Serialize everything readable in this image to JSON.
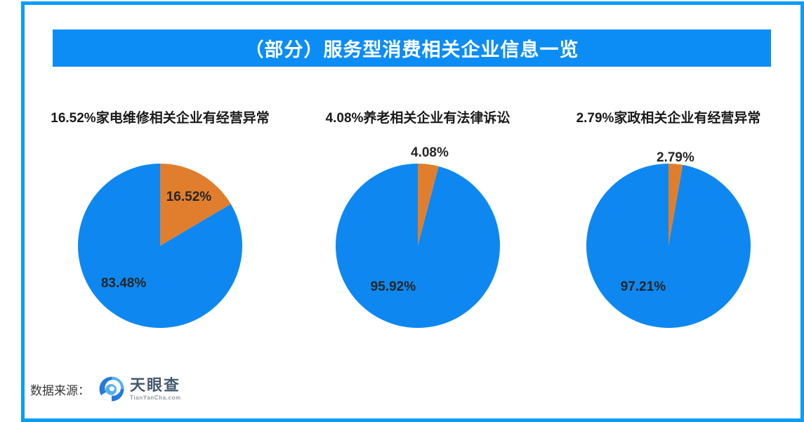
{
  "header": {
    "title": "（部分）服务型消费相关企业信息一览"
  },
  "colors": {
    "frame-blue": "#089cfb",
    "banner-blue": "#0c8df5",
    "pie-blue": "#0e88f0",
    "pie-orange": "#e07e2e",
    "banner-text": "#ffffff",
    "chart-title": "#1a1a1a",
    "pie-label": "#262626",
    "source-text": "#383838",
    "logo-name": "#455a6e",
    "logo-domain": "#8f9aa4",
    "swirl-dark": "#2878dd",
    "swirl-light": "#54b0ee"
  },
  "chart_data": [
    {
      "type": "pie",
      "title": "16.52%家电维修相关企业有经营异常",
      "start_angle": "top",
      "direction": "clockwise",
      "legend": false,
      "slices": [
        {
          "label": "16.52%",
          "value": 16.52,
          "color": "pie-orange",
          "label_placement": "inside",
          "label_offset": [
            0.35,
            -0.594
          ]
        },
        {
          "label": "83.48%",
          "value": 83.48,
          "color": "pie-blue",
          "label_placement": "inside",
          "label_offset": [
            -0.444,
            0.462
          ]
        }
      ]
    },
    {
      "type": "pie",
      "title": "4.08%养老相关企业有法律诉讼",
      "start_angle": "top",
      "direction": "clockwise",
      "legend": false,
      "slices": [
        {
          "label": "4.08%",
          "value": 4.08,
          "color": "pie-orange",
          "label_placement": "outside",
          "label_offset": [
            0.145,
            -1.128
          ]
        },
        {
          "label": "95.92%",
          "value": 95.92,
          "color": "pie-blue",
          "label_placement": "inside",
          "label_offset": [
            -0.3,
            0.504
          ]
        }
      ]
    },
    {
      "type": "pie",
      "title": "2.79%家政相关企业有经营异常",
      "start_angle": "top",
      "direction": "clockwise",
      "legend": false,
      "slices": [
        {
          "label": "2.79%",
          "value": 2.79,
          "color": "pie-orange",
          "label_placement": "outside",
          "label_offset": [
            0.085,
            -1.068
          ]
        },
        {
          "label": "97.21%",
          "value": 97.21,
          "color": "pie-blue",
          "label_placement": "inside",
          "label_offset": [
            -0.308,
            0.504
          ]
        }
      ]
    }
  ],
  "footer": {
    "source_label": "数据来源：",
    "logo": {
      "icon": "tianyancha-swirl-icon",
      "name": "天眼查",
      "domain": "TianYanCha.com"
    }
  }
}
